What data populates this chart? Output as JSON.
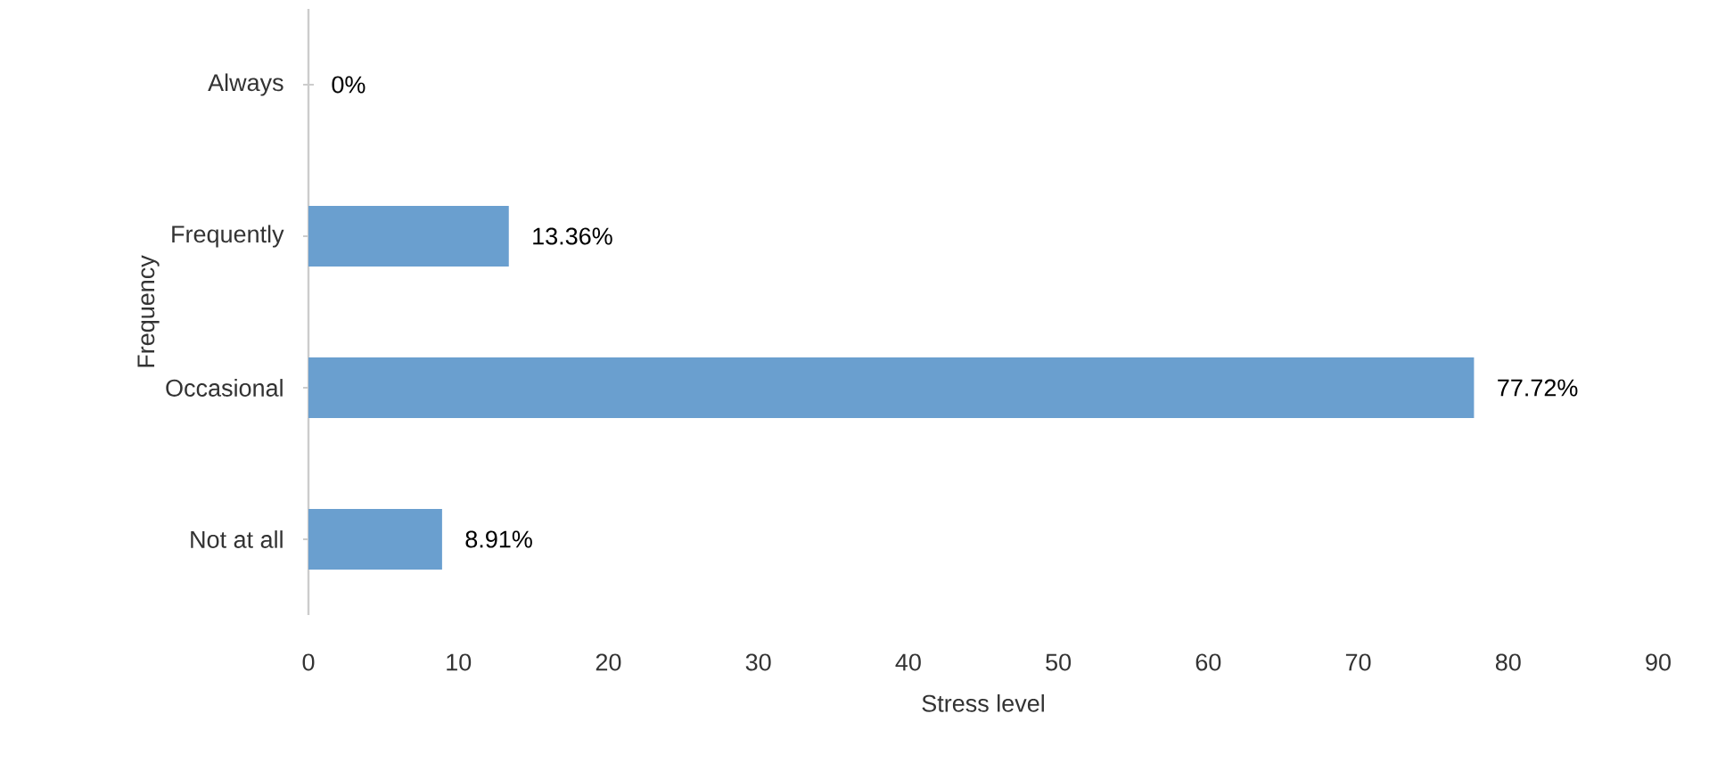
{
  "chart_data": {
    "type": "bar",
    "orientation": "horizontal",
    "xlabel": "Stress level",
    "ylabel": "Frequency",
    "categories": [
      "Always",
      "Frequently",
      "Occasional",
      "Not at all"
    ],
    "values": [
      0,
      13.36,
      77.72,
      8.91
    ],
    "value_labels": [
      "0%",
      "13.36%",
      "77.72%",
      "8.91%"
    ],
    "color": "#6a9fcf",
    "xlim": [
      0,
      90
    ],
    "xticks": [
      0,
      10,
      20,
      30,
      40,
      50,
      60,
      70,
      80,
      90
    ],
    "grid": false
  }
}
